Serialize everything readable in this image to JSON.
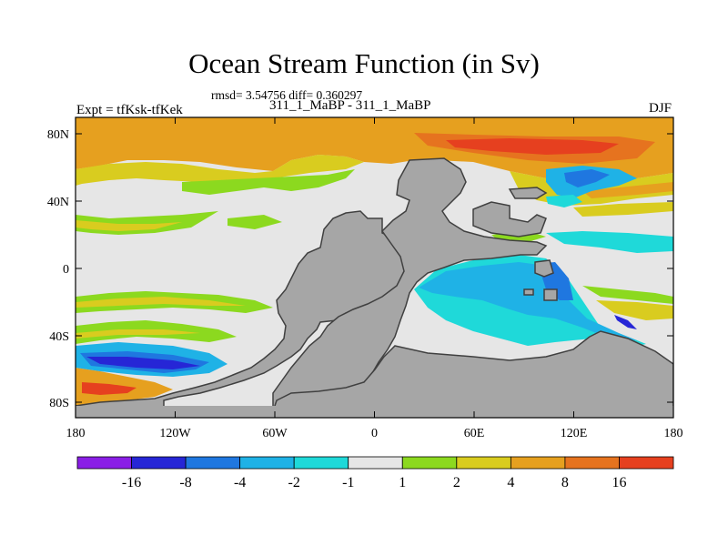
{
  "title": "Ocean Stream Function (in Sv)",
  "stats": "rmsd= 3.54756 diff= 0.360297",
  "subtitle": "311_1_MaBP - 311_1_MaBP",
  "left_label": "Expt = tfKsk-tfKek",
  "right_label": "DJF",
  "lat_ticks": [
    "80N",
    "40N",
    "0",
    "40S",
    "80S"
  ],
  "lon_ticks": [
    "180",
    "120W",
    "60W",
    "0",
    "60E",
    "120E",
    "180"
  ],
  "colorbar": {
    "colors": [
      "#8a1ee6",
      "#2626d6",
      "#1f77e0",
      "#1fb2e6",
      "#1fd9d9",
      "#e6e6e6",
      "#8cd91f",
      "#d9cc1f",
      "#e6a01f",
      "#e6731f",
      "#e6401f"
    ],
    "labels": [
      "-16",
      "-8",
      "-4",
      "-2",
      "-1",
      "1",
      "2",
      "4",
      "8",
      "16"
    ]
  },
  "land_color": "#a6a6a6",
  "background_color": "#e6e6e6"
}
